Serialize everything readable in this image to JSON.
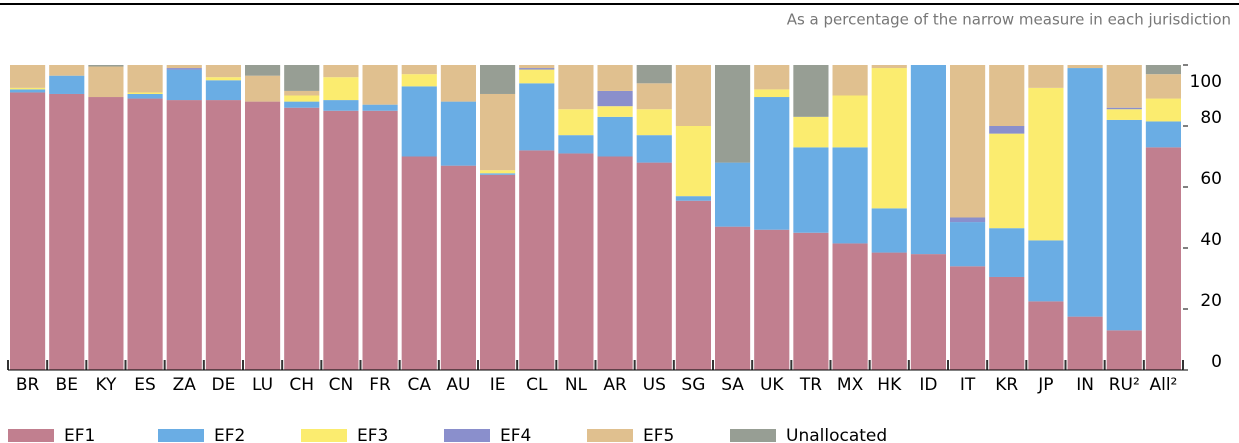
{
  "chart_data": {
    "type": "stacked_bar",
    "subtitle": "As a percentage of the narrow measure in each jurisdiction",
    "categories": [
      "BR",
      "BE",
      "KY",
      "ES",
      "ZA",
      "DE",
      "LU",
      "CH",
      "CN",
      "FR",
      "CA",
      "AU",
      "IE",
      "CL",
      "NL",
      "AR",
      "US",
      "SG",
      "SA",
      "UK",
      "TR",
      "MX",
      "HK",
      "ID",
      "IT",
      "KR",
      "JP",
      "IN",
      "RU²",
      "All²"
    ],
    "series": [
      {
        "name": "EF1",
        "color": "#c17f8f",
        "values": [
          91,
          90.5,
          89.5,
          89,
          88.5,
          88.5,
          88,
          86,
          85,
          85,
          70,
          67,
          64,
          72,
          71,
          70,
          68,
          55.5,
          47,
          46,
          45,
          41.5,
          38.5,
          38,
          34,
          30.5,
          22.5,
          17.5,
          13,
          73
        ]
      },
      {
        "name": "EF2",
        "color": "#6aade4",
        "values": [
          1,
          6,
          0,
          1.5,
          10,
          6.5,
          0,
          2,
          3.5,
          2,
          23,
          21,
          0.5,
          22,
          6,
          13,
          9,
          1.5,
          21,
          43.5,
          28,
          31.5,
          14.5,
          62,
          14.5,
          16,
          20,
          81.5,
          69,
          8.5
        ]
      },
      {
        "name": "EF3",
        "color": "#fbec6f",
        "values": [
          0.5,
          0,
          0,
          0.5,
          0,
          1,
          0,
          2,
          7.5,
          0,
          4,
          0,
          1,
          4.5,
          8.5,
          3.5,
          8.5,
          23,
          0,
          2.5,
          10,
          17,
          46,
          0,
          0,
          31,
          50,
          0,
          3.5,
          7.5
        ]
      },
      {
        "name": "EF4",
        "color": "#8a8fcc",
        "values": [
          0,
          0,
          0,
          0,
          0.5,
          0,
          0,
          0,
          0,
          0,
          0,
          0,
          0,
          0.5,
          0,
          5,
          0,
          0,
          0,
          0,
          0,
          0,
          0,
          0,
          1.5,
          2.5,
          0,
          0,
          0.5,
          0
        ]
      },
      {
        "name": "EF5",
        "color": "#e0c08f",
        "values": [
          7.5,
          3.5,
          10,
          9,
          1,
          4,
          8.5,
          1.5,
          4,
          13,
          3,
          12,
          25,
          1,
          14.5,
          8.5,
          8.5,
          20,
          0,
          8,
          0,
          10,
          1,
          0,
          50,
          20,
          7.5,
          1,
          14,
          8
        ]
      },
      {
        "name": "Unallocated",
        "color": "#979e94",
        "values": [
          0,
          0,
          0.5,
          0,
          0,
          0,
          3.5,
          8.5,
          0,
          0,
          0,
          0,
          9.5,
          0,
          0,
          0,
          6,
          0,
          32,
          0,
          17,
          0,
          0,
          0,
          0,
          0,
          0,
          0,
          0,
          3
        ]
      }
    ],
    "ylim": [
      0,
      100
    ],
    "yticks": [
      0,
      20,
      40,
      60,
      80,
      100
    ],
    "grid": false,
    "legend": "bottom"
  }
}
